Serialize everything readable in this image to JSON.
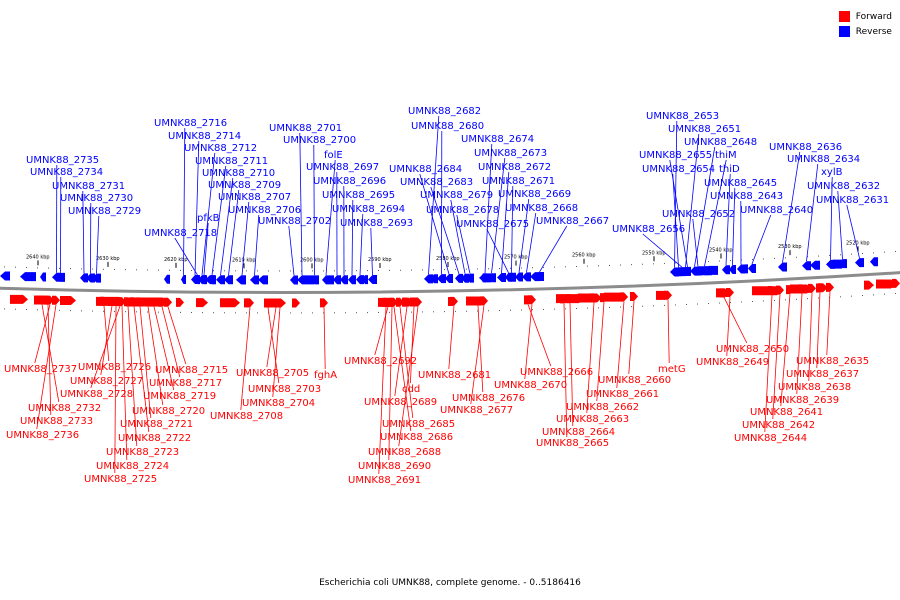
{
  "legend": {
    "forward_label": "Forward",
    "reverse_label": "Reverse",
    "forward_color": "#ff0000",
    "reverse_color": "#0000ff"
  },
  "caption": "Escherichia coli UMNK88, complete genome. - 0..5186416",
  "ticks": [
    {
      "kbp": 2640,
      "label": "2640 kbp"
    },
    {
      "kbp": 2630,
      "label": "2630 kbp"
    },
    {
      "kbp": 2620,
      "label": "2620 kbp"
    },
    {
      "kbp": 2610,
      "label": "2610 kbp"
    },
    {
      "kbp": 2600,
      "label": "2600 kbp"
    },
    {
      "kbp": 2590,
      "label": "2590 kbp"
    },
    {
      "kbp": 2580,
      "label": "2580 kbp"
    },
    {
      "kbp": 2570,
      "label": "2570 kbp"
    },
    {
      "kbp": 2560,
      "label": "2560 kbp"
    },
    {
      "kbp": 2550,
      "label": "2550 kbp"
    },
    {
      "kbp": 2540,
      "label": "2540 kbp"
    },
    {
      "kbp": 2530,
      "label": "2530 kbp"
    },
    {
      "kbp": 2520,
      "label": "2520 kbp"
    }
  ],
  "reverse_genes": [
    "UMNK88_2735",
    "UMNK88_2734",
    "UMNK88_2731",
    "UMNK88_2730",
    "UMNK88_2729",
    "UMNK88_2716",
    "UMNK88_2714",
    "UMNK88_2712",
    "UMNK88_2711",
    "UMNK88_2710",
    "UMNK88_2709",
    "UMNK88_2707",
    "UMNK88_2706",
    "pfkB",
    "UMNK88_2718",
    "UMNK88_2701",
    "UMNK88_2700",
    "folE",
    "UMNK88_2697",
    "UMNK88_2696",
    "UMNK88_2695",
    "UMNK88_2694",
    "UMNK88_2693",
    "UMNK88_2702",
    "UMNK88_2682",
    "UMNK88_2680",
    "UMNK88_2684",
    "UMNK88_2683",
    "UMNK88_2679",
    "UMNK88_2678",
    "UMNK88_2674",
    "UMNK88_2673",
    "UMNK88_2672",
    "UMNK88_2671",
    "UMNK88_2669",
    "UMNK88_2668",
    "UMNK88_2675",
    "UMNK88_2667",
    "UMNK88_2653",
    "UMNK88_2651",
    "UMNK88_2648",
    "UMNK88_2655",
    "thiM",
    "UMNK88_2654",
    "thiD",
    "UMNK88_2645",
    "UMNK88_2643",
    "UMNK88_2652",
    "UMNK88_2640",
    "UMNK88_2656",
    "UMNK88_2636",
    "UMNK88_2634",
    "xylB",
    "UMNK88_2632",
    "UMNK88_2631"
  ],
  "forward_genes": [
    "UMNK88_2737",
    "UMNK88_2726",
    "UMNK88_2727",
    "UMNK88_2728",
    "UMNK88_2732",
    "UMNK88_2733",
    "UMNK88_2736",
    "UMNK88_2715",
    "UMNK88_2717",
    "UMNK88_2719",
    "UMNK88_2720",
    "UMNK88_2721",
    "UMNK88_2722",
    "UMNK88_2723",
    "UMNK88_2724",
    "UMNK88_2725",
    "UMNK88_2705",
    "UMNK88_2703",
    "UMNK88_2704",
    "UMNK88_2708",
    "fghA",
    "UMNK88_2692",
    "UMNK88_2681",
    "cdd",
    "UMNK88_2689",
    "UMNK88_2685",
    "UMNK88_2686",
    "UMNK88_2688",
    "UMNK88_2690",
    "UMNK88_2691",
    "UMNK88_2676",
    "UMNK88_2677",
    "UMNK88_2666",
    "UMNK88_2670",
    "UMNK88_2660",
    "UMNK88_2661",
    "UMNK88_2662",
    "UMNK88_2663",
    "UMNK88_2664",
    "UMNK88_2665",
    "metG",
    "UMNK88_2650",
    "UMNK88_2649",
    "UMNK88_2635",
    "UMNK88_2637",
    "UMNK88_2638",
    "UMNK88_2639",
    "UMNK88_2641",
    "UMNK88_2642",
    "UMNK88_2644"
  ]
}
